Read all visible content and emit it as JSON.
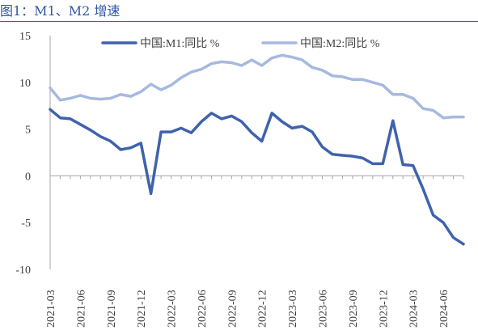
{
  "caption": "图1：M1、M2 增速",
  "colors": {
    "m1": "#3f62ad",
    "m2": "#a6b9e0",
    "axis": "#a6a6a6",
    "caption": "#2f55a4"
  },
  "chart_data": {
    "type": "line",
    "title": "",
    "xlabel": "",
    "ylabel": "",
    "ylim": [
      -10,
      15
    ],
    "yticks": [
      15,
      10,
      5,
      0,
      -5,
      -10
    ],
    "grid": false,
    "legend_position": "top",
    "x": [
      "2021-03",
      "2021-04",
      "2021-05",
      "2021-06",
      "2021-07",
      "2021-08",
      "2021-09",
      "2021-10",
      "2021-11",
      "2021-12",
      "2022-01",
      "2022-02",
      "2022-03",
      "2022-04",
      "2022-05",
      "2022-06",
      "2022-07",
      "2022-08",
      "2022-09",
      "2022-10",
      "2022-11",
      "2022-12",
      "2023-01",
      "2023-02",
      "2023-03",
      "2023-04",
      "2023-05",
      "2023-06",
      "2023-07",
      "2023-08",
      "2023-09",
      "2023-10",
      "2023-11",
      "2023-12",
      "2024-01",
      "2024-02",
      "2024-03",
      "2024-04",
      "2024-05",
      "2024-06",
      "2024-07",
      "2024-08"
    ],
    "xtick_labels": [
      "2021-03",
      "2021-06",
      "2021-09",
      "2021-12",
      "2022-03",
      "2022-06",
      "2022-09",
      "2022-12",
      "2023-03",
      "2023-06",
      "2023-09",
      "2023-12",
      "2024-03",
      "2024-06"
    ],
    "series": [
      {
        "name": "中国:M1:同比 %",
        "values": [
          7.1,
          6.2,
          6.1,
          5.5,
          4.9,
          4.2,
          3.7,
          2.8,
          3.0,
          3.5,
          -1.9,
          4.7,
          4.7,
          5.1,
          4.6,
          5.8,
          6.7,
          6.1,
          6.4,
          5.8,
          4.6,
          3.7,
          6.7,
          5.8,
          5.1,
          5.3,
          4.7,
          3.1,
          2.3,
          2.2,
          2.1,
          1.9,
          1.3,
          1.3,
          5.9,
          1.2,
          1.1,
          -1.4,
          -4.2,
          -5.0,
          -6.6,
          -7.3
        ]
      },
      {
        "name": "中国:M2:同比 %",
        "values": [
          9.4,
          8.1,
          8.3,
          8.6,
          8.3,
          8.2,
          8.3,
          8.7,
          8.5,
          9.0,
          9.8,
          9.2,
          9.7,
          10.5,
          11.1,
          11.4,
          12.0,
          12.2,
          12.1,
          11.8,
          12.4,
          11.8,
          12.6,
          12.9,
          12.7,
          12.4,
          11.6,
          11.3,
          10.7,
          10.6,
          10.3,
          10.3,
          10.0,
          9.7,
          8.7,
          8.7,
          8.3,
          7.2,
          7.0,
          6.2,
          6.3,
          6.3
        ]
      }
    ]
  }
}
